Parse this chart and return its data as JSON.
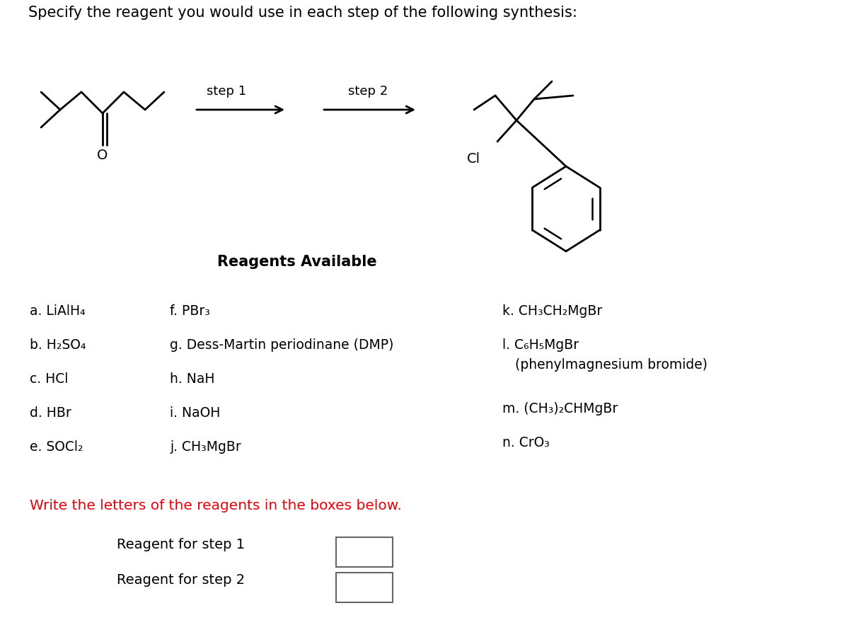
{
  "title": "Specify the reagent you would use in each step of the following synthesis:",
  "title_fontsize": 14,
  "background_color": "#ffffff",
  "text_color": "#000000",
  "red_color": "#e8000a",
  "reagents_header": "Reagents Available",
  "write_text": "Write the letters of the reagents in the boxes below.",
  "step1_label": "Reagent for step 1",
  "step2_label": "Reagent for step 2"
}
